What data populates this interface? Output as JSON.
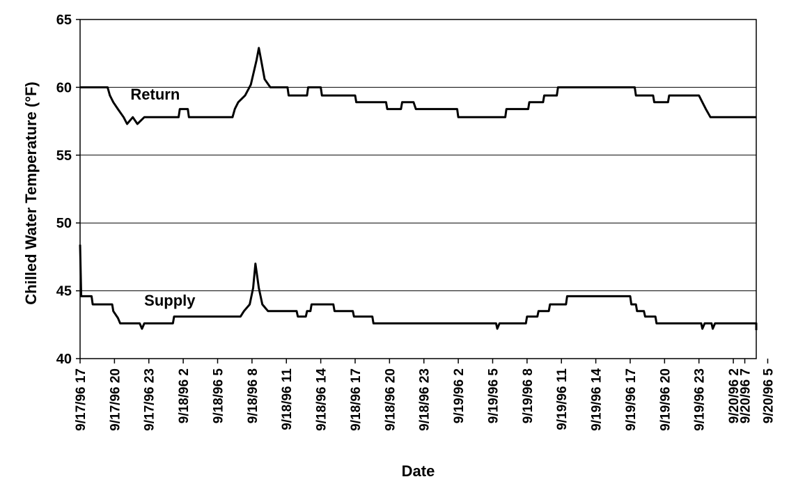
{
  "chart_data": {
    "type": "line",
    "title": "",
    "xlabel": "Date",
    "ylabel": "Chilled Water Temperature (°F)",
    "ylim": [
      40,
      65
    ],
    "yticks": [
      40,
      45,
      50,
      55,
      60,
      65
    ],
    "grid": "horizontal",
    "legend": "none",
    "x_tick_labels": [
      "9/17/96 17",
      "9/17/96 20",
      "9/17/96 23",
      "9/18/96 2",
      "9/18/96 5",
      "9/18/96 8",
      "9/18/96 11",
      "9/18/96 14",
      "9/18/96 17",
      "9/18/96 20",
      "9/18/96 23",
      "9/19/96 2",
      "9/19/96 5",
      "9/19/96 8",
      "9/19/96 11",
      "9/19/96 14",
      "9/19/96 17",
      "9/19/96 20",
      "9/19/96 23",
      "9/20/96 2",
      "9/20/96 5",
      "9/20/96 7"
    ],
    "series": [
      {
        "name": "Return",
        "color": "#000000",
        "points": [
          [
            0,
            60.0
          ],
          [
            2.4,
            60.0
          ],
          [
            2.6,
            59.4
          ],
          [
            2.9,
            58.9
          ],
          [
            3.3,
            58.4
          ],
          [
            3.8,
            57.8
          ],
          [
            4.1,
            57.3
          ],
          [
            4.6,
            57.8
          ],
          [
            5.0,
            57.3
          ],
          [
            5.6,
            57.8
          ],
          [
            8.6,
            57.8
          ],
          [
            8.7,
            58.4
          ],
          [
            9.4,
            58.4
          ],
          [
            9.5,
            57.8
          ],
          [
            13.3,
            57.8
          ],
          [
            13.5,
            58.4
          ],
          [
            13.8,
            58.9
          ],
          [
            14.4,
            59.4
          ],
          [
            14.9,
            60.2
          ],
          [
            15.4,
            62.0
          ],
          [
            15.6,
            62.9
          ],
          [
            15.8,
            62.0
          ],
          [
            16.1,
            60.6
          ],
          [
            16.6,
            60.0
          ],
          [
            18.1,
            60.0
          ],
          [
            18.2,
            59.4
          ],
          [
            19.8,
            59.4
          ],
          [
            19.9,
            60.0
          ],
          [
            21.0,
            60.0
          ],
          [
            21.1,
            59.4
          ],
          [
            24.0,
            59.4
          ],
          [
            24.1,
            58.9
          ],
          [
            26.7,
            58.9
          ],
          [
            26.8,
            58.4
          ],
          [
            28.0,
            58.4
          ],
          [
            28.1,
            58.9
          ],
          [
            29.1,
            58.9
          ],
          [
            29.3,
            58.4
          ],
          [
            32.9,
            58.4
          ],
          [
            33.0,
            57.8
          ],
          [
            37.1,
            57.8
          ],
          [
            37.2,
            58.4
          ],
          [
            39.1,
            58.4
          ],
          [
            39.2,
            58.9
          ],
          [
            40.4,
            58.9
          ],
          [
            40.5,
            59.4
          ],
          [
            41.6,
            59.4
          ],
          [
            41.7,
            60.0
          ],
          [
            48.4,
            60.0
          ],
          [
            48.5,
            59.4
          ],
          [
            50.0,
            59.4
          ],
          [
            50.1,
            58.9
          ],
          [
            51.3,
            58.9
          ],
          [
            51.4,
            59.4
          ],
          [
            54.0,
            59.4
          ],
          [
            54.3,
            58.9
          ],
          [
            54.6,
            58.4
          ],
          [
            55.0,
            57.8
          ],
          [
            59.0,
            57.8
          ]
        ]
      },
      {
        "name": "Supply",
        "color": "#000000",
        "points": [
          [
            0,
            48.4
          ],
          [
            0.1,
            44.6
          ],
          [
            1.0,
            44.6
          ],
          [
            1.1,
            44.0
          ],
          [
            2.8,
            44.0
          ],
          [
            2.9,
            43.5
          ],
          [
            3.3,
            43.0
          ],
          [
            3.5,
            42.6
          ],
          [
            5.2,
            42.6
          ],
          [
            5.4,
            42.2
          ],
          [
            5.6,
            42.6
          ],
          [
            8.1,
            42.6
          ],
          [
            8.2,
            43.1
          ],
          [
            14.0,
            43.1
          ],
          [
            14.3,
            43.5
          ],
          [
            14.8,
            44.0
          ],
          [
            15.1,
            45.2
          ],
          [
            15.3,
            47.0
          ],
          [
            15.6,
            45.2
          ],
          [
            15.9,
            44.0
          ],
          [
            16.4,
            43.5
          ],
          [
            18.9,
            43.5
          ],
          [
            19.0,
            43.1
          ],
          [
            19.7,
            43.1
          ],
          [
            19.8,
            43.5
          ],
          [
            20.1,
            43.5
          ],
          [
            20.2,
            44.0
          ],
          [
            22.1,
            44.0
          ],
          [
            22.2,
            43.5
          ],
          [
            23.8,
            43.5
          ],
          [
            23.9,
            43.1
          ],
          [
            25.5,
            43.1
          ],
          [
            25.6,
            42.6
          ],
          [
            36.3,
            42.6
          ],
          [
            36.4,
            42.2
          ],
          [
            36.6,
            42.6
          ],
          [
            38.9,
            42.6
          ],
          [
            39.0,
            43.1
          ],
          [
            39.9,
            43.1
          ],
          [
            40.0,
            43.5
          ],
          [
            40.9,
            43.5
          ],
          [
            41.0,
            44.0
          ],
          [
            42.4,
            44.0
          ],
          [
            42.5,
            44.6
          ],
          [
            48.0,
            44.6
          ],
          [
            48.1,
            44.0
          ],
          [
            48.5,
            44.0
          ],
          [
            48.6,
            43.5
          ],
          [
            49.2,
            43.5
          ],
          [
            49.3,
            43.1
          ],
          [
            50.2,
            43.1
          ],
          [
            50.3,
            42.6
          ],
          [
            54.2,
            42.6
          ],
          [
            54.3,
            42.2
          ],
          [
            54.5,
            42.6
          ],
          [
            55.1,
            42.6
          ],
          [
            55.2,
            42.2
          ],
          [
            55.4,
            42.6
          ],
          [
            59.0,
            42.6
          ],
          [
            59.0,
            42.1
          ]
        ]
      }
    ],
    "annotations": [
      "Return",
      "Supply"
    ]
  }
}
